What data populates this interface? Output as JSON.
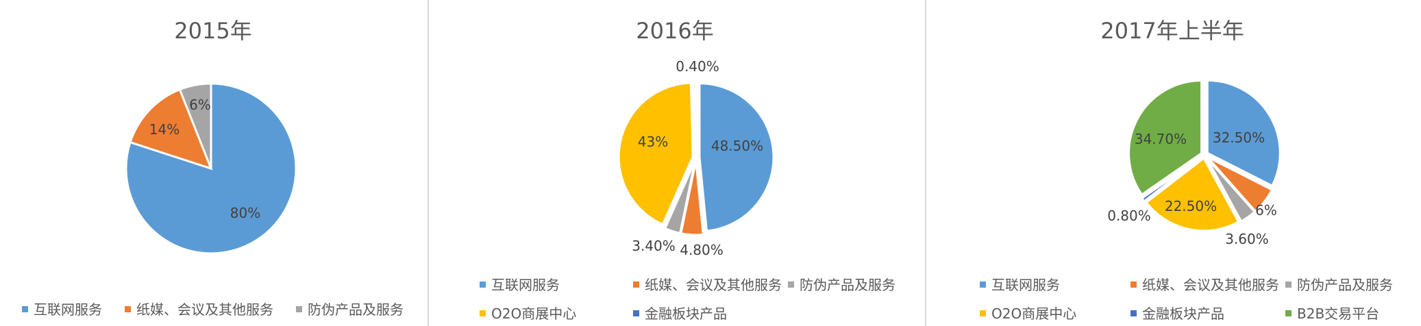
{
  "colors": {
    "internet": "#5B9BD5",
    "paper": "#ED7D31",
    "antifake": "#A5A5A5",
    "o2o": "#FFC000",
    "finance": "#4472C4",
    "b2b": "#70AD47"
  },
  "chart_data": [
    {
      "type": "pie",
      "title": "2015年",
      "slices": [
        {
          "name": "互联网服务",
          "value": 80,
          "label": "80%",
          "color": "#5B9BD5"
        },
        {
          "name": "纸媒、会议及其他服务",
          "value": 14,
          "label": "14%",
          "color": "#ED7D31"
        },
        {
          "name": "防伪产品及服务",
          "value": 6,
          "label": "6%",
          "color": "#A5A5A5"
        }
      ],
      "legend": [
        "互联网服务",
        "纸媒、会议及其他服务",
        "防伪产品及服务"
      ]
    },
    {
      "type": "pie",
      "title": "2016年",
      "slices": [
        {
          "name": "互联网服务",
          "value": 48.5,
          "label": "48.50%",
          "color": "#5B9BD5"
        },
        {
          "name": "纸媒、会议及其他服务",
          "value": 4.8,
          "label": "4.80%",
          "color": "#ED7D31"
        },
        {
          "name": "防伪产品及服务",
          "value": 3.4,
          "label": "3.40%",
          "color": "#A5A5A5"
        },
        {
          "name": "O2O商展中心",
          "value": 43,
          "label": "43%",
          "color": "#FFC000"
        },
        {
          "name": "金融板块产品",
          "value": 0.4,
          "label": "0.40%",
          "color": "#4472C4"
        }
      ],
      "legend": [
        "互联网服务",
        "纸媒、会议及其他服务",
        "防伪产品及服务",
        "O2O商展中心",
        "金融板块产品"
      ]
    },
    {
      "type": "pie",
      "title": "2017年上半年",
      "slices": [
        {
          "name": "互联网服务",
          "value": 32.5,
          "label": "32.50%",
          "color": "#5B9BD5"
        },
        {
          "name": "纸媒、会议及其他服务",
          "value": 6,
          "label": "6%",
          "color": "#ED7D31"
        },
        {
          "name": "防伪产品及服务",
          "value": 3.6,
          "label": "3.60%",
          "color": "#A5A5A5"
        },
        {
          "name": "O2O商展中心",
          "value": 22.5,
          "label": "22.50%",
          "color": "#FFC000"
        },
        {
          "name": "金融板块产品",
          "value": 0.8,
          "label": "0.80%",
          "color": "#4472C4"
        },
        {
          "name": "B2B交易平台",
          "value": 34.7,
          "label": "34.70%",
          "color": "#70AD47"
        }
      ],
      "legend": [
        "互联网服务",
        "纸媒、会议及其他服务",
        "防伪产品及服务",
        "O2O商展中心",
        "金融板块产品",
        "B2B交易平台"
      ]
    }
  ]
}
